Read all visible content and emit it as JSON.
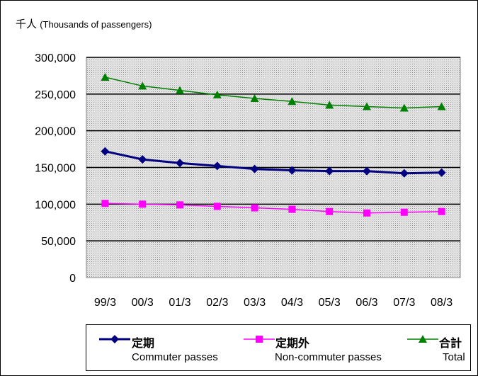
{
  "chart_data": {
    "type": "line",
    "title": "",
    "unit_label": "千人",
    "unit_label_en": "(Thousands of passengers)",
    "categories": [
      "99/3",
      "00/3",
      "01/3",
      "02/3",
      "03/3",
      "04/3",
      "05/3",
      "06/3",
      "07/3",
      "08/3"
    ],
    "ylim": [
      0,
      300000
    ],
    "yticks": [
      0,
      50000,
      100000,
      150000,
      200000,
      250000,
      300000
    ],
    "ytick_labels": [
      "0",
      "50,000",
      "100,000",
      "150,000",
      "200,000",
      "250,000",
      "300,000"
    ],
    "grid": true,
    "legend_position": "bottom",
    "series": [
      {
        "name": "定期",
        "subtitle": "Commuter passes",
        "color": "#000080",
        "marker": "diamond",
        "values": [
          172000,
          161000,
          156000,
          152000,
          148000,
          146000,
          145000,
          145000,
          142000,
          143000
        ]
      },
      {
        "name": "定期外",
        "subtitle": "Non-commuter passes",
        "color": "#ff00ff",
        "marker": "square",
        "values": [
          101000,
          100000,
          99000,
          97000,
          95000,
          93000,
          90000,
          88000,
          89000,
          90000
        ]
      },
      {
        "name": "合計",
        "subtitle": "Total",
        "color": "#008000",
        "marker": "triangle",
        "values": [
          273000,
          261000,
          255000,
          249000,
          244000,
          240000,
          235000,
          233000,
          231000,
          233000
        ]
      }
    ]
  }
}
